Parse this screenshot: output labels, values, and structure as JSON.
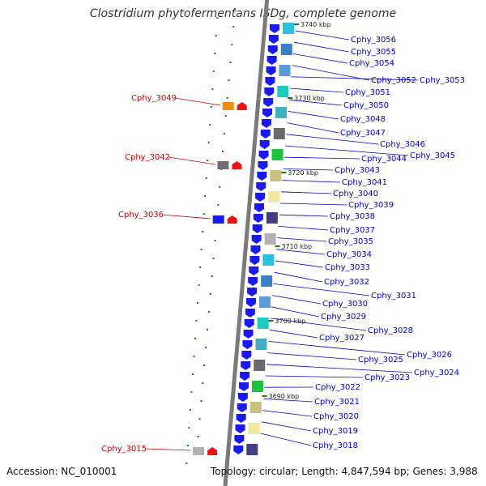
{
  "title": "Clostridium phytofermentans ISDg, complete genome",
  "accession_text": "Accession: NC_010001",
  "topology_text": "Topology: circular; Length: 4,847,594 bp; Genes: 3,988",
  "colors": {
    "forward_label": "#0000cc",
    "reverse_label": "#cc0000",
    "arrow_blue": "#1a1aee",
    "arrow_red": "#ee1111",
    "axis": "#7a7a7a",
    "dots": "#1a7a1a"
  },
  "scale_marks": [
    {
      "label": "3740 kbp"
    },
    {
      "label": "3730 kbp"
    },
    {
      "label": "3720 kbp"
    },
    {
      "label": "3710 kbp"
    },
    {
      "label": "3700 kbp"
    },
    {
      "label": "3690 kbp"
    }
  ],
  "forward_genes": [
    "Cphy_3056",
    "Cphy_3055",
    "Cphy_3054",
    "Cphy_3052",
    "Cphy_3053",
    "Cphy_3051",
    "Cphy_3050",
    "Cphy_3048",
    "Cphy_3047",
    "Cphy_3046",
    "Cphy_3045",
    "Cphy_3044",
    "Cphy_3043",
    "Cphy_3041",
    "Cphy_3040",
    "Cphy_3039",
    "Cphy_3038",
    "Cphy_3037",
    "Cphy_3035",
    "Cphy_3034",
    "Cphy_3033",
    "Cphy_3032",
    "Cphy_3031",
    "Cphy_3030",
    "Cphy_3029",
    "Cphy_3028",
    "Cphy_3027",
    "Cphy_3026",
    "Cphy_3025",
    "Cphy_3024",
    "Cphy_3023",
    "Cphy_3022",
    "Cphy_3021",
    "Cphy_3020",
    "Cphy_3019",
    "Cphy_3018"
  ],
  "reverse_genes": [
    "Cphy_3049",
    "Cphy_3042",
    "Cphy_3036",
    "Cphy_3015"
  ]
}
